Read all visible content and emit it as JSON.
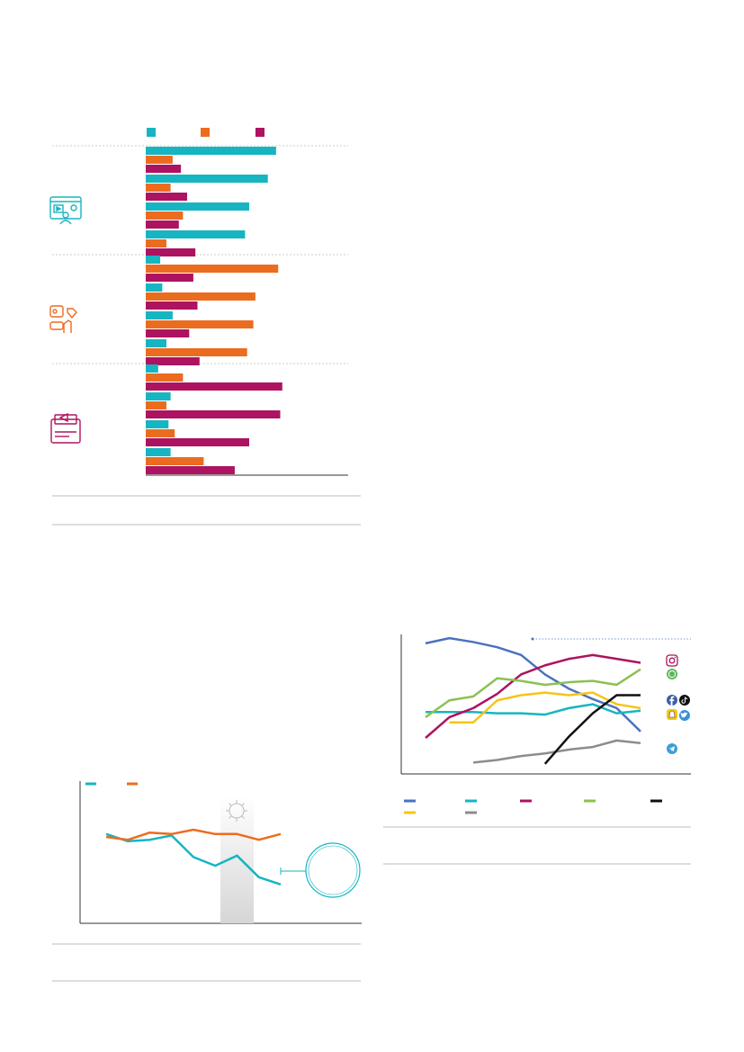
{
  "colors": {
    "teal": "#16b5c1",
    "orange": "#ec6c1f",
    "magenta": "#ad1360",
    "blue": "#4a72bf",
    "green": "#8cc152",
    "yellow": "#f5c518",
    "gray": "#8c8c8c",
    "black": "#111111",
    "rule": "#bdbdbd"
  },
  "icons": {
    "group1": "video-streaming-icon",
    "group2": "social-reactions-icon",
    "group3": "newspaper-megaphone-icon",
    "virus": "virus-icon",
    "platforms": [
      "instagram-icon",
      "whatsapp-icon",
      "facebook-icon",
      "tiktok-icon",
      "snapchat-icon",
      "twitter-icon",
      "telegram-icon"
    ]
  },
  "chart_data": [
    {
      "type": "bar",
      "orientation": "horizontal",
      "xlim": [
        0,
        100
      ],
      "series_colors": [
        "#16b5c1",
        "#ec6c1f",
        "#ad1360"
      ],
      "groups": [
        {
          "icon": "video-streaming-icon",
          "rows": [
            [
              63,
              13,
              17
            ],
            [
              59,
              12,
              20
            ],
            [
              50,
              18,
              16
            ],
            [
              48,
              10,
              24
            ]
          ]
        },
        {
          "icon": "social-reactions-icon",
          "rows": [
            [
              7,
              64,
              23
            ],
            [
              8,
              53,
              25
            ],
            [
              13,
              52,
              21
            ],
            [
              10,
              49,
              26
            ]
          ]
        },
        {
          "icon": "newspaper-megaphone-icon",
          "rows": [
            [
              6,
              18,
              66
            ],
            [
              12,
              10,
              65
            ],
            [
              11,
              14,
              50
            ],
            [
              12,
              28,
              43
            ]
          ]
        }
      ]
    },
    {
      "type": "line",
      "x": [
        0,
        1,
        2,
        3,
        4,
        5,
        6,
        7,
        8
      ],
      "ylim": [
        0,
        10
      ],
      "series": [
        {
          "color": "#16b5c1",
          "values": [
            6.2,
            5.7,
            5.8,
            6.1,
            4.6,
            4.0,
            4.7,
            3.2,
            2.7
          ]
        },
        {
          "color": "#ec6c1f",
          "values": [
            6.0,
            5.8,
            6.3,
            6.2,
            6.5,
            6.2,
            6.2,
            5.8,
            6.2
          ]
        }
      ],
      "highlight_band": [
        5.15,
        6.6
      ]
    },
    {
      "type": "line",
      "x": [
        0,
        1,
        2,
        3,
        4,
        5,
        6,
        7,
        8,
        9
      ],
      "ylim": [
        0,
        10
      ],
      "series": [
        {
          "color": "#4a72bf",
          "values": [
            9.8,
            10.2,
            9.9,
            9.5,
            8.9,
            7.4,
            6.3,
            5.5,
            4.8,
            3.0
          ]
        },
        {
          "color": "#16b5c1",
          "values": [
            4.5,
            4.5,
            4.5,
            4.4,
            4.4,
            4.3,
            4.8,
            5.1,
            4.4,
            4.6
          ]
        },
        {
          "color": "#ad1360",
          "values": [
            2.5,
            4.1,
            4.8,
            5.9,
            7.4,
            8.1,
            8.6,
            8.9,
            8.6,
            8.3
          ]
        },
        {
          "color": "#8cc152",
          "values": [
            4.1,
            5.4,
            5.7,
            7.1,
            6.9,
            6.6,
            6.8,
            6.9,
            6.6,
            7.8
          ]
        },
        {
          "color": "#f5c518",
          "values": [
            null,
            3.7,
            3.7,
            5.4,
            5.8,
            6.0,
            5.8,
            6.0,
            5.1,
            4.8
          ]
        },
        {
          "color": "#8c8c8c",
          "values": [
            null,
            null,
            0.6,
            0.8,
            1.1,
            1.3,
            1.6,
            1.8,
            2.3,
            2.1
          ]
        },
        {
          "color": "#111111",
          "values": [
            null,
            null,
            null,
            null,
            null,
            0.5,
            2.6,
            4.4,
            5.8,
            5.8
          ]
        }
      ]
    }
  ]
}
